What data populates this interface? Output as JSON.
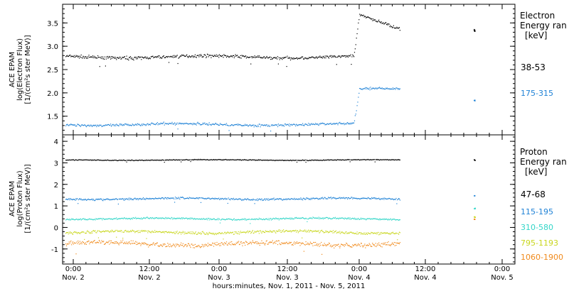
{
  "chart_data": [
    {
      "type": "scatter",
      "ylabel_lines": [
        "ACE EPAM",
        "log(Electron Flux)",
        "[1/(cm²s ster MeV)]"
      ],
      "ylim": [
        1.1,
        3.9
      ],
      "yticks": [
        1.5,
        2.0,
        2.5,
        3.0,
        3.5
      ],
      "legend_title_lines": [
        "Electron",
        "Energy ran",
        "[keV]"
      ],
      "series": [
        {
          "name": "38-53",
          "color": "#000000",
          "base": 2.78,
          "noise": 0.05,
          "post_start": 3.68,
          "post_end": 3.38,
          "late": 3.35
        },
        {
          "name": "175-315",
          "color": "#1f82d6",
          "base": 1.33,
          "noise": 0.04,
          "post_start": 2.1,
          "post_end": 2.1,
          "late": 1.85
        }
      ]
    },
    {
      "type": "scatter",
      "ylabel_lines": [
        "ACE EPAM",
        "log(Proton Flux)",
        "[1/(cm²s ster MeV)]"
      ],
      "ylim": [
        -1.7,
        4.3
      ],
      "yticks": [
        -1,
        0,
        1,
        2,
        3,
        4
      ],
      "legend_title_lines": [
        "Proton",
        "Energy ran",
        "[keV]"
      ],
      "series": [
        {
          "name": "47-68",
          "color": "#000000",
          "base": 3.15,
          "noise": 0.03,
          "late": 3.15
        },
        {
          "name": "115-195",
          "color": "#1f82d6",
          "base": 1.35,
          "noise": 0.07,
          "late": 1.5
        },
        {
          "name": "310-580",
          "color": "#33d6c8",
          "base": 0.42,
          "noise": 0.06,
          "late": 0.9
        },
        {
          "name": "795-1193",
          "color": "#c8d61c",
          "base": -0.2,
          "noise": 0.1,
          "late": 0.5
        },
        {
          "name": "1060-1900",
          "color": "#f08a1c",
          "base": -0.75,
          "noise": 0.15,
          "late": 0.4
        }
      ]
    }
  ],
  "x_axis": {
    "ticks": [
      {
        "time": "0:00",
        "day": "Nov. 2"
      },
      {
        "time": "12:00",
        "day": "Nov. 2"
      },
      {
        "time": "0:00",
        "day": "Nov. 3"
      },
      {
        "time": "12:00",
        "day": "Nov. 3"
      },
      {
        "time": "0:00",
        "day": "Nov. 4"
      },
      {
        "time": "12:00",
        "day": "Nov. 4"
      },
      {
        "time": "0:00",
        "day": "Nov. 5"
      }
    ],
    "label": "hours:minutes, Nov.  1, 2011 - Nov.  5, 2011"
  }
}
